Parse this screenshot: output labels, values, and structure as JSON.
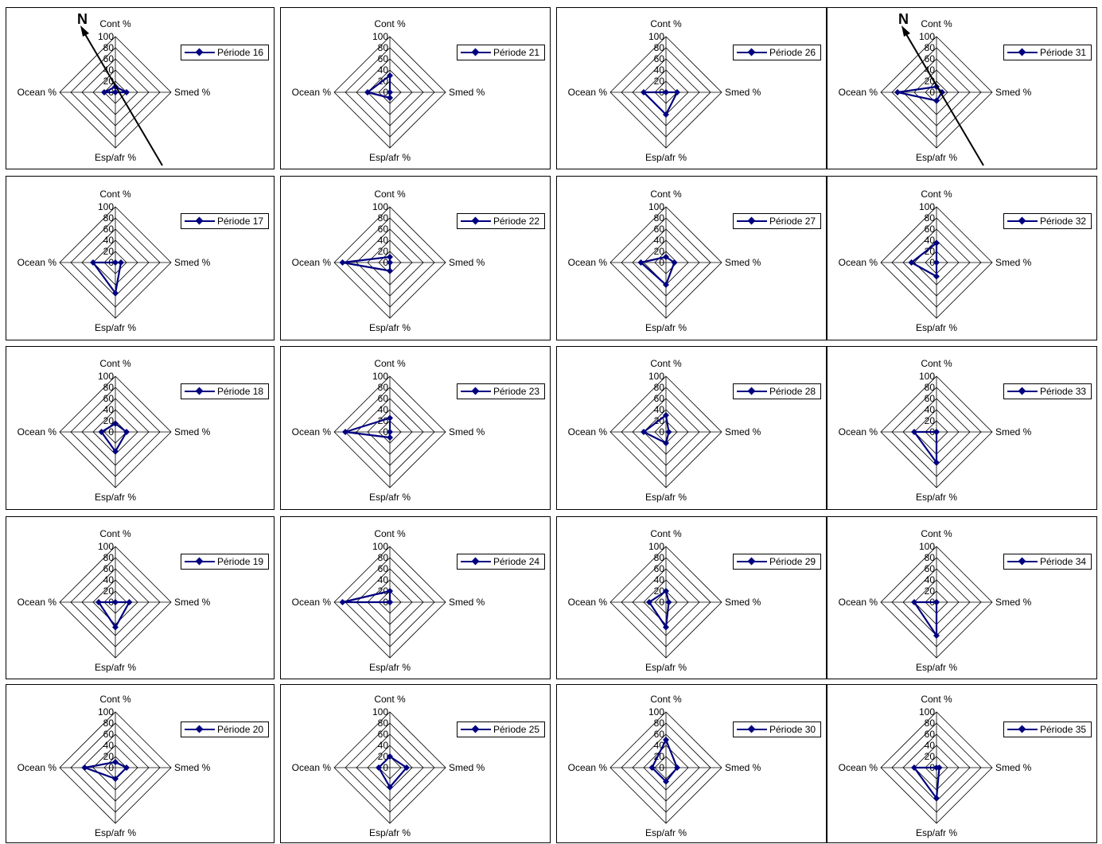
{
  "north_label": "N",
  "series_color": "#000080",
  "chart_data": [
    {
      "type": "radar",
      "series": [
        {
          "name": "Période 16",
          "values": [
            10,
            20,
            0,
            20
          ]
        }
      ],
      "categories": [
        "Cont %",
        "Smed %",
        "Esp/afr %",
        "Ocean %"
      ],
      "rlim": [
        0,
        100
      ],
      "rticks": [
        "0",
        "20",
        "40",
        "60",
        "80",
        "100"
      ]
    },
    {
      "type": "radar",
      "series": [
        {
          "name": "Période 21",
          "values": [
            30,
            0,
            10,
            40
          ]
        }
      ],
      "categories": [
        "Cont %",
        "Smed %",
        "Esp/afr %",
        "Ocean %"
      ],
      "rlim": [
        0,
        100
      ],
      "rticks": [
        "0",
        "20",
        "40",
        "60",
        "80",
        "100"
      ]
    },
    {
      "type": "radar",
      "series": [
        {
          "name": "Période 26",
          "values": [
            0,
            20,
            40,
            40
          ]
        }
      ],
      "categories": [
        "Cont %",
        "Smed %",
        "Esp/afr %",
        "Ocean %"
      ],
      "rlim": [
        0,
        100
      ],
      "rticks": [
        "0",
        "20",
        "40",
        "60",
        "80",
        "100"
      ]
    },
    {
      "type": "radar",
      "series": [
        {
          "name": "Période 31",
          "values": [
            10,
            10,
            15,
            70
          ]
        }
      ],
      "categories": [
        "Cont %",
        "Smed %",
        "Esp/afr %",
        "Ocean %"
      ],
      "rlim": [
        0,
        100
      ],
      "rticks": [
        "0",
        "20",
        "40",
        "60",
        "80",
        "100"
      ]
    },
    {
      "type": "radar",
      "series": [
        {
          "name": "Période 17",
          "values": [
            0,
            10,
            55,
            40
          ]
        }
      ],
      "categories": [
        "Cont %",
        "Smed %",
        "Esp/afr %",
        "Ocean %"
      ],
      "rlim": [
        0,
        100
      ],
      "rticks": [
        "0",
        "20",
        "40",
        "60",
        "80",
        "100"
      ]
    },
    {
      "type": "radar",
      "series": [
        {
          "name": "Période 22",
          "values": [
            10,
            0,
            15,
            85
          ]
        }
      ],
      "categories": [
        "Cont %",
        "Smed %",
        "Esp/afr %",
        "Ocean %"
      ],
      "rlim": [
        0,
        100
      ],
      "rticks": [
        "0",
        "20",
        "40",
        "60",
        "80",
        "100"
      ]
    },
    {
      "type": "radar",
      "series": [
        {
          "name": "Période 27",
          "values": [
            10,
            15,
            40,
            45
          ]
        }
      ],
      "categories": [
        "Cont %",
        "Smed %",
        "Esp/afr %",
        "Ocean %"
      ],
      "rlim": [
        0,
        100
      ],
      "rticks": [
        "0",
        "20",
        "40",
        "60",
        "80",
        "100"
      ]
    },
    {
      "type": "radar",
      "series": [
        {
          "name": "Période 32",
          "values": [
            35,
            0,
            25,
            45
          ]
        }
      ],
      "categories": [
        "Cont %",
        "Smed %",
        "Esp/afr %",
        "Ocean %"
      ],
      "rlim": [
        0,
        100
      ],
      "rticks": [
        "0",
        "20",
        "40",
        "60",
        "80",
        "100"
      ]
    },
    {
      "type": "radar",
      "series": [
        {
          "name": "Période 18",
          "values": [
            15,
            20,
            35,
            25
          ]
        }
      ],
      "categories": [
        "Cont %",
        "Smed %",
        "Esp/afr %",
        "Ocean %"
      ],
      "rlim": [
        0,
        100
      ],
      "rticks": [
        "0",
        "20",
        "40",
        "60",
        "80",
        "100"
      ]
    },
    {
      "type": "radar",
      "series": [
        {
          "name": "Période 23",
          "values": [
            25,
            0,
            10,
            80
          ]
        }
      ],
      "categories": [
        "Cont %",
        "Smed %",
        "Esp/afr %",
        "Ocean %"
      ],
      "rlim": [
        0,
        100
      ],
      "rticks": [
        "0",
        "20",
        "40",
        "60",
        "80",
        "100"
      ]
    },
    {
      "type": "radar",
      "series": [
        {
          "name": "Période 28",
          "values": [
            30,
            5,
            20,
            40
          ]
        }
      ],
      "categories": [
        "Cont %",
        "Smed %",
        "Esp/afr %",
        "Ocean %"
      ],
      "rlim": [
        0,
        100
      ],
      "rticks": [
        "0",
        "20",
        "40",
        "60",
        "80",
        "100"
      ]
    },
    {
      "type": "radar",
      "series": [
        {
          "name": "Période 33",
          "values": [
            0,
            0,
            55,
            40
          ]
        }
      ],
      "categories": [
        "Cont %",
        "Smed %",
        "Esp/afr %",
        "Ocean %"
      ],
      "rlim": [
        0,
        100
      ],
      "rticks": [
        "0",
        "20",
        "40",
        "60",
        "80",
        "100"
      ]
    },
    {
      "type": "radar",
      "series": [
        {
          "name": "Période 19",
          "values": [
            0,
            25,
            45,
            30
          ]
        }
      ],
      "categories": [
        "Cont %",
        "Smed %",
        "Esp/afr %",
        "Ocean %"
      ],
      "rlim": [
        0,
        100
      ],
      "rticks": [
        "0",
        "20",
        "40",
        "60",
        "80",
        "100"
      ]
    },
    {
      "type": "radar",
      "series": [
        {
          "name": "Période 24",
          "values": [
            20,
            0,
            0,
            85
          ]
        }
      ],
      "categories": [
        "Cont %",
        "Smed %",
        "Esp/afr %",
        "Ocean %"
      ],
      "rlim": [
        0,
        100
      ],
      "rticks": [
        "0",
        "20",
        "40",
        "60",
        "80",
        "100"
      ]
    },
    {
      "type": "radar",
      "series": [
        {
          "name": "Période 29",
          "values": [
            20,
            5,
            45,
            30
          ]
        }
      ],
      "categories": [
        "Cont %",
        "Smed %",
        "Esp/afr %",
        "Ocean %"
      ],
      "rlim": [
        0,
        100
      ],
      "rticks": [
        "0",
        "20",
        "40",
        "60",
        "80",
        "100"
      ]
    },
    {
      "type": "radar",
      "series": [
        {
          "name": "Période 34",
          "values": [
            0,
            0,
            60,
            40
          ]
        }
      ],
      "categories": [
        "Cont %",
        "Smed %",
        "Esp/afr %",
        "Ocean %"
      ],
      "rlim": [
        0,
        100
      ],
      "rticks": [
        "0",
        "20",
        "40",
        "60",
        "80",
        "100"
      ]
    },
    {
      "type": "radar",
      "series": [
        {
          "name": "Période 20",
          "values": [
            10,
            20,
            20,
            55
          ]
        }
      ],
      "categories": [
        "Cont %",
        "Smed %",
        "Esp/afr %",
        "Ocean %"
      ],
      "rlim": [
        0,
        100
      ],
      "rticks": [
        "0",
        "20",
        "40",
        "60",
        "80",
        "100"
      ]
    },
    {
      "type": "radar",
      "series": [
        {
          "name": "Période 25",
          "values": [
            20,
            30,
            35,
            20
          ]
        }
      ],
      "categories": [
        "Cont %",
        "Smed %",
        "Esp/afr %",
        "Ocean %"
      ],
      "rlim": [
        0,
        100
      ],
      "rticks": [
        "0",
        "20",
        "40",
        "60",
        "80",
        "100"
      ]
    },
    {
      "type": "radar",
      "series": [
        {
          "name": "Période 30",
          "values": [
            50,
            20,
            25,
            25
          ]
        }
      ],
      "categories": [
        "Cont %",
        "Smed %",
        "Esp/afr %",
        "Ocean %"
      ],
      "rlim": [
        0,
        100
      ],
      "rticks": [
        "0",
        "20",
        "40",
        "60",
        "80",
        "100"
      ]
    },
    {
      "type": "radar",
      "series": [
        {
          "name": "Période 35",
          "values": [
            0,
            5,
            55,
            40
          ]
        }
      ],
      "categories": [
        "Cont %",
        "Smed %",
        "Esp/afr %",
        "Ocean %"
      ],
      "rlim": [
        0,
        100
      ],
      "rticks": [
        "0",
        "20",
        "40",
        "60",
        "80",
        "100"
      ]
    }
  ]
}
